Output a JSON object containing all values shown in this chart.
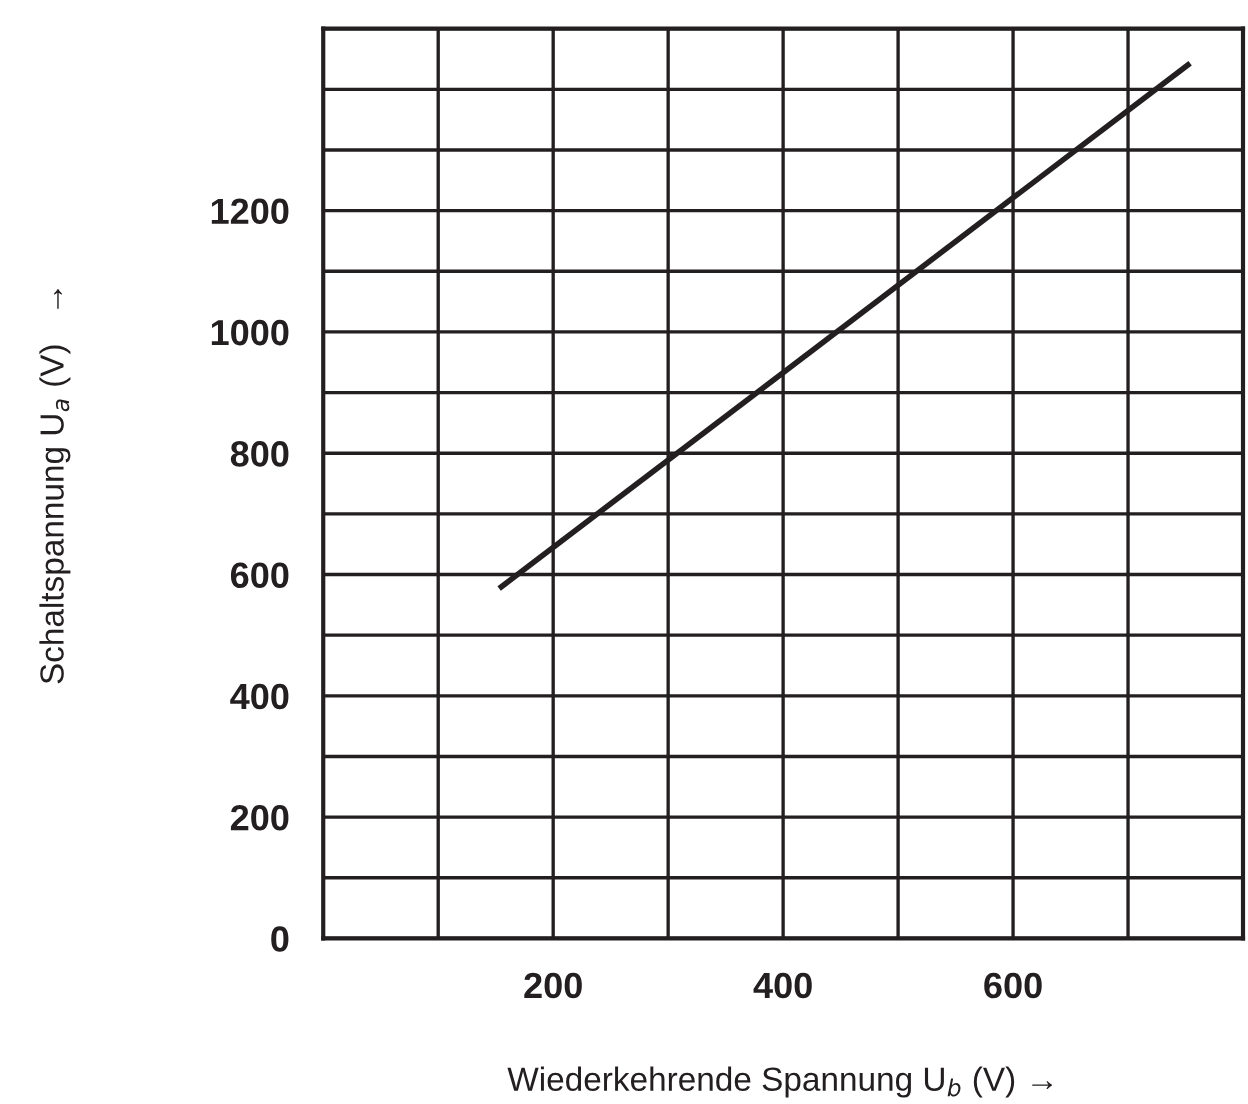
{
  "chart_data": {
    "type": "line",
    "xlabel": "Wiederkehrende Spannung U$_{b}$ (V) →",
    "ylabel": "Schaltspannung U$_{a}$ (V)   →",
    "x": [
      153,
      754
    ],
    "series": [
      {
        "color": "#231f20",
        "values": [
          577,
          1443
        ]
      }
    ],
    "xlim": [
      0,
      800
    ],
    "ylim": [
      0,
      1500
    ],
    "xticks": [
      {
        "value": 0,
        "label": null
      },
      {
        "value": 100,
        "label": null
      },
      200,
      {
        "value": 300,
        "label": null
      },
      400,
      {
        "value": 500,
        "label": null
      },
      600,
      {
        "value": 700,
        "label": null
      },
      {
        "value": 800,
        "label": null
      }
    ],
    "yticks": [
      0,
      {
        "value": 100,
        "label": null
      },
      200,
      {
        "value": 300,
        "label": null
      },
      400,
      {
        "value": 500,
        "label": null
      },
      600,
      {
        "value": 700,
        "label": null
      },
      800,
      {
        "value": 900,
        "label": null
      },
      1000,
      {
        "value": 1100,
        "label": null
      },
      1200,
      {
        "value": 1300,
        "label": null
      },
      {
        "value": 1400,
        "label": null
      },
      {
        "value": 1500,
        "label": null
      }
    ],
    "grid": true,
    "marker": "none",
    "line_style": "solid",
    "legend": false
  }
}
